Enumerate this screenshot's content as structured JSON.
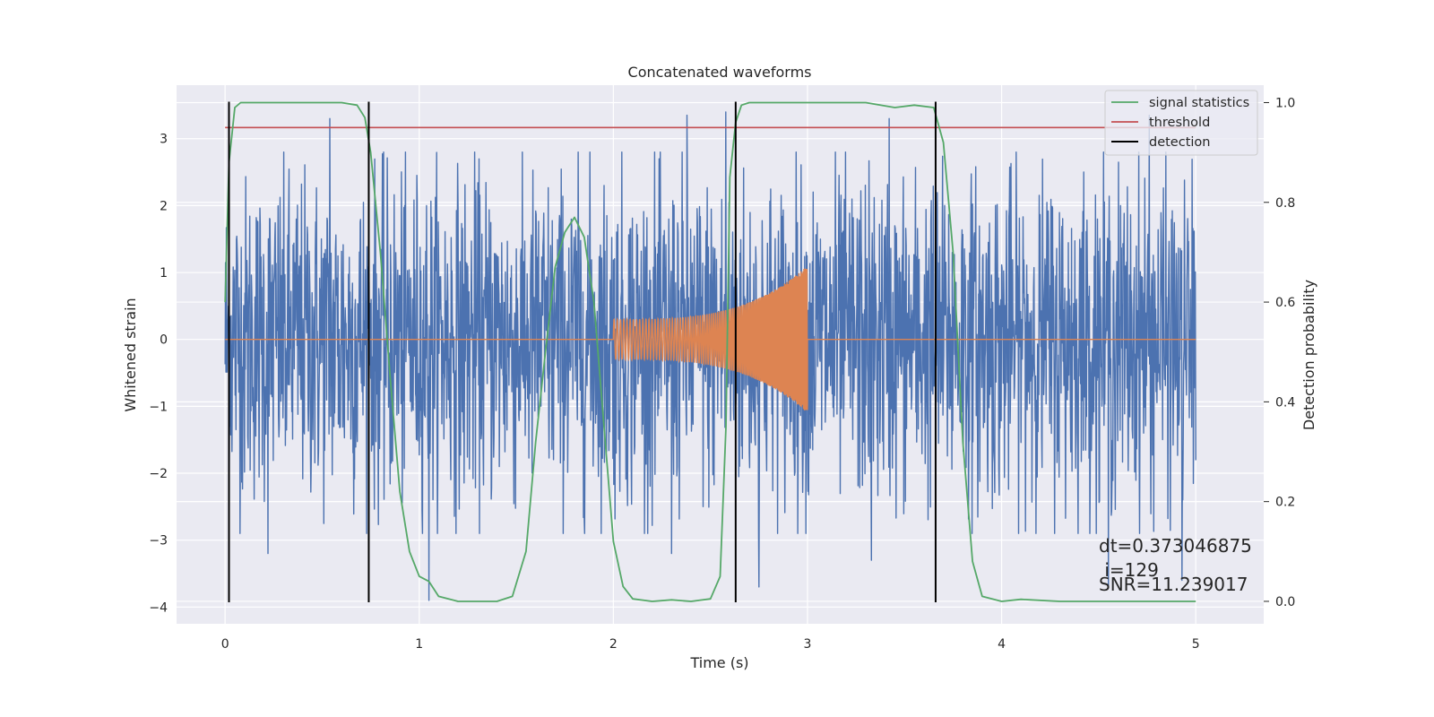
{
  "chart_data": {
    "type": "line",
    "title": "Concatenated waveforms",
    "xlabel": "Time (s)",
    "ylabel": "Whitened strain",
    "y2label": "Detection probability",
    "xlim": [
      -0.25,
      5.35
    ],
    "ylim": [
      -4.25,
      3.8
    ],
    "y2lim": [
      -0.045,
      1.035
    ],
    "xticks": [
      0,
      1,
      2,
      3,
      4,
      5
    ],
    "yticks": [
      -4,
      -3,
      -2,
      -1,
      0,
      1,
      2,
      3
    ],
    "y2ticks": [
      0.0,
      0.2,
      0.4,
      0.6,
      0.8,
      1.0
    ],
    "grid": true,
    "legend_position": "top-right",
    "colors": {
      "noise": "#4c72b0",
      "signal": "#dd8452",
      "statistics": "#55a868",
      "threshold": "#c44e52",
      "detection": "#000000",
      "background": "#eaeaf2",
      "grid": "#ffffff"
    },
    "series": [
      {
        "name": "",
        "role": "whitened strain noise",
        "axis": "left",
        "x_range": [
          0,
          5
        ],
        "typical_amplitude": 1.5,
        "max_peaks": [
          [
            0.54,
            3.3
          ],
          [
            2.38,
            3.35
          ],
          [
            2.58,
            3.4
          ],
          [
            3.42,
            3.3
          ],
          [
            4.76,
            3.35
          ]
        ],
        "min_peaks": [
          [
            0.22,
            -3.2
          ],
          [
            1.05,
            -3.9
          ],
          [
            2.3,
            -3.2
          ],
          [
            2.75,
            -3.7
          ],
          [
            3.33,
            -3.3
          ],
          [
            4.55,
            -3.7
          ],
          [
            4.93,
            -3.6
          ]
        ]
      },
      {
        "name": "",
        "role": "injected chirp",
        "axis": "left",
        "x_range": [
          2.0,
          3.0
        ],
        "amplitude_start": 0.3,
        "amplitude_end": 1.1
      },
      {
        "name": "signal statistics",
        "axis": "right",
        "x": [
          0.0,
          0.02,
          0.05,
          0.08,
          0.1,
          0.2,
          0.4,
          0.6,
          0.68,
          0.72,
          0.75,
          0.8,
          0.85,
          0.9,
          0.95,
          1.0,
          1.05,
          1.1,
          1.2,
          1.3,
          1.4,
          1.48,
          1.55,
          1.6,
          1.65,
          1.7,
          1.75,
          1.8,
          1.85,
          1.9,
          1.95,
          2.0,
          2.05,
          2.1,
          2.2,
          2.3,
          2.4,
          2.5,
          2.55,
          2.58,
          2.6,
          2.63,
          2.66,
          2.7,
          2.8,
          3.0,
          3.3,
          3.45,
          3.55,
          3.65,
          3.7,
          3.75,
          3.8,
          3.85,
          3.9,
          4.0,
          4.1,
          4.15,
          4.3,
          5.0
        ],
        "values": [
          0.6,
          0.88,
          0.99,
          1.0,
          1.0,
          1.0,
          1.0,
          1.0,
          0.995,
          0.97,
          0.9,
          0.7,
          0.45,
          0.22,
          0.1,
          0.05,
          0.04,
          0.01,
          0.0,
          0.0,
          0.0,
          0.01,
          0.1,
          0.32,
          0.5,
          0.67,
          0.74,
          0.77,
          0.73,
          0.6,
          0.36,
          0.12,
          0.03,
          0.005,
          0.0,
          0.003,
          0.0,
          0.005,
          0.05,
          0.35,
          0.85,
          0.96,
          0.995,
          1.0,
          1.0,
          1.0,
          1.0,
          0.99,
          0.995,
          0.99,
          0.92,
          0.7,
          0.32,
          0.08,
          0.01,
          0.0,
          0.004,
          0.003,
          0.0,
          0.0
        ]
      },
      {
        "name": "threshold",
        "axis": "right",
        "x": [
          0,
          5
        ],
        "values": [
          0.95,
          0.95
        ]
      }
    ],
    "detections": {
      "name": "detection",
      "x": [
        0.02,
        0.74,
        2.63,
        3.66
      ]
    },
    "annotations": [
      "dt=0.373046875",
      " i=129",
      "SNR=11.239017"
    ]
  }
}
